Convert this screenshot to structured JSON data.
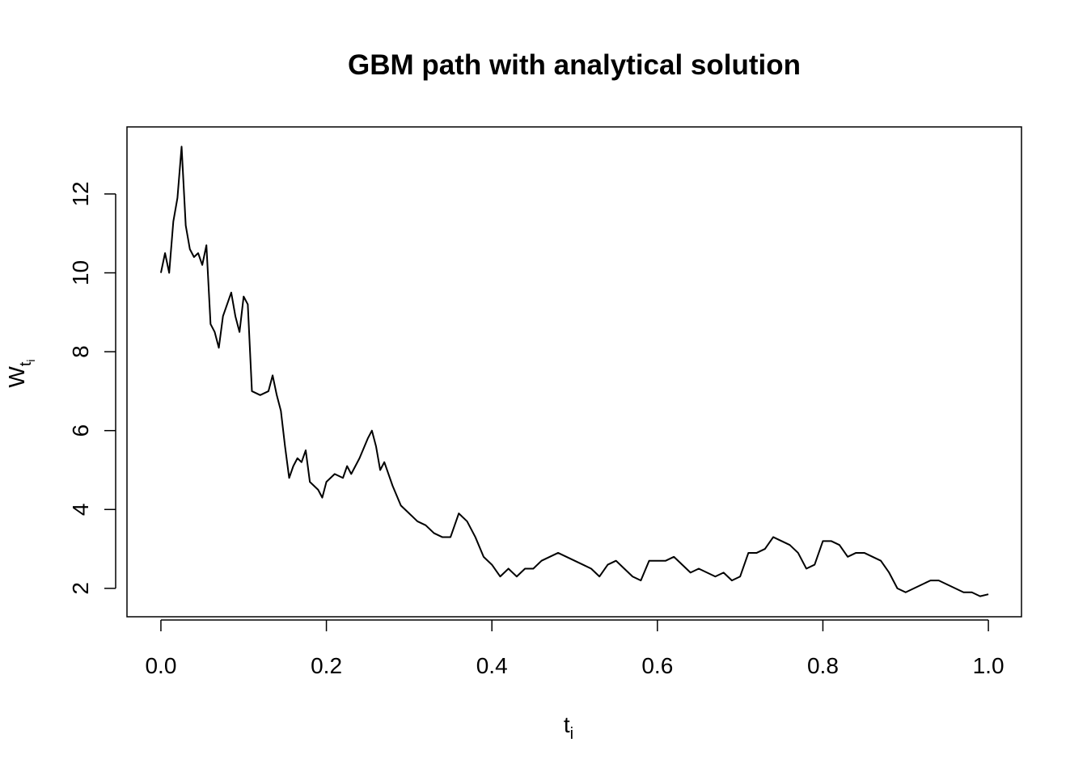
{
  "chart_data": {
    "type": "line",
    "title": "GBM path with analytical solution",
    "xlabel": {
      "main": "t",
      "sub": "i"
    },
    "ylabel": {
      "main": "W",
      "sub": "t",
      "subsub": "i"
    },
    "x": [
      0,
      0.005,
      0.01,
      0.015,
      0.02,
      0.025,
      0.03,
      0.035,
      0.04,
      0.045,
      0.05,
      0.055,
      0.06,
      0.065,
      0.07,
      0.075,
      0.08,
      0.085,
      0.09,
      0.095,
      0.1,
      0.105,
      0.11,
      0.12,
      0.13,
      0.135,
      0.14,
      0.145,
      0.15,
      0.155,
      0.16,
      0.165,
      0.17,
      0.175,
      0.18,
      0.19,
      0.195,
      0.2,
      0.21,
      0.22,
      0.225,
      0.23,
      0.24,
      0.25,
      0.255,
      0.26,
      0.265,
      0.27,
      0.28,
      0.29,
      0.3,
      0.31,
      0.32,
      0.33,
      0.34,
      0.35,
      0.36,
      0.37,
      0.38,
      0.39,
      0.4,
      0.41,
      0.42,
      0.43,
      0.44,
      0.45,
      0.46,
      0.47,
      0.48,
      0.49,
      0.5,
      0.51,
      0.52,
      0.53,
      0.54,
      0.55,
      0.56,
      0.57,
      0.58,
      0.59,
      0.6,
      0.61,
      0.62,
      0.63,
      0.64,
      0.65,
      0.66,
      0.67,
      0.68,
      0.69,
      0.7,
      0.71,
      0.72,
      0.73,
      0.74,
      0.75,
      0.76,
      0.77,
      0.78,
      0.79,
      0.8,
      0.81,
      0.82,
      0.83,
      0.84,
      0.85,
      0.86,
      0.87,
      0.88,
      0.89,
      0.9,
      0.91,
      0.92,
      0.93,
      0.94,
      0.95,
      0.96,
      0.97,
      0.98,
      0.99,
      1.0
    ],
    "values": [
      10.0,
      10.5,
      10.0,
      11.3,
      11.9,
      13.2,
      11.2,
      10.6,
      10.4,
      10.5,
      10.2,
      10.7,
      8.7,
      8.5,
      8.1,
      8.9,
      9.2,
      9.5,
      8.9,
      8.5,
      9.4,
      9.2,
      7.0,
      6.9,
      7.0,
      7.4,
      6.9,
      6.5,
      5.6,
      4.8,
      5.1,
      5.3,
      5.2,
      5.5,
      4.7,
      4.5,
      4.3,
      4.7,
      4.9,
      4.8,
      5.1,
      4.9,
      5.3,
      5.8,
      6.0,
      5.6,
      5.0,
      5.2,
      4.6,
      4.1,
      3.9,
      3.7,
      3.6,
      3.4,
      3.3,
      3.3,
      3.9,
      3.7,
      3.3,
      2.8,
      2.6,
      2.3,
      2.5,
      2.3,
      2.5,
      2.5,
      2.7,
      2.8,
      2.9,
      2.8,
      2.7,
      2.6,
      2.5,
      2.3,
      2.6,
      2.7,
      2.5,
      2.3,
      2.2,
      2.7,
      2.7,
      2.7,
      2.8,
      2.6,
      2.4,
      2.5,
      2.4,
      2.3,
      2.4,
      2.2,
      2.3,
      2.9,
      2.9,
      3.0,
      3.3,
      3.2,
      3.1,
      2.9,
      2.5,
      2.6,
      3.2,
      3.2,
      3.1,
      2.8,
      2.9,
      2.9,
      2.8,
      2.7,
      2.4,
      2.0,
      1.9,
      2.0,
      2.1,
      2.2,
      2.2,
      2.1,
      2.0,
      1.9,
      1.9,
      1.8,
      1.85
    ],
    "color": "#000000",
    "xlim": [
      -0.041,
      1.04
    ],
    "ylim": [
      1.28,
      13.7
    ],
    "xticks": [
      {
        "value": 0,
        "label": "0.0"
      },
      0.2,
      0.4,
      0.6,
      0.8,
      {
        "value": 1,
        "label": "1.0"
      }
    ],
    "yticks": [
      2,
      4,
      6,
      8,
      10,
      12
    ]
  }
}
